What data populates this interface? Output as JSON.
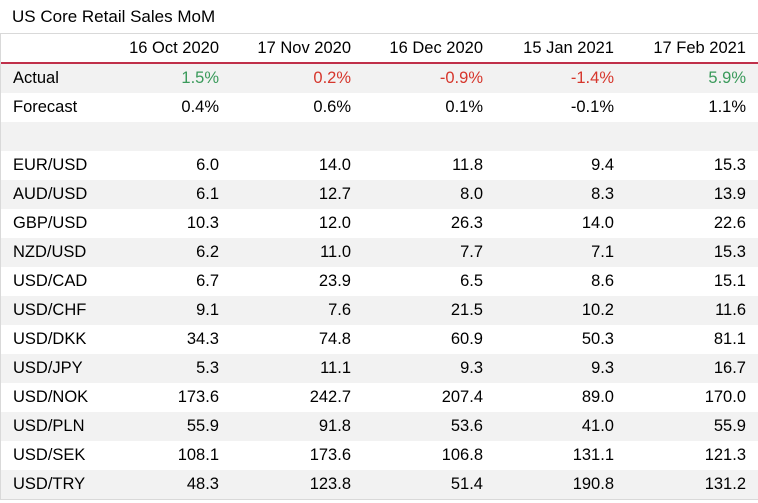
{
  "title": "US Core Retail Sales MoM",
  "columns": [
    "",
    "16 Oct 2020",
    "17 Nov 2020",
    "16 Dec 2020",
    "15 Jan 2021",
    "17 Feb 2021"
  ],
  "actual": {
    "label": "Actual",
    "values": [
      "1.5%",
      "0.2%",
      "-0.9%",
      "-1.4%",
      "5.9%"
    ],
    "colors": [
      "#3a9a5b",
      "#d6362c",
      "#d6362c",
      "#d6362c",
      "#3a9a5b"
    ]
  },
  "forecast": {
    "label": "Forecast",
    "values": [
      "0.4%",
      "0.6%",
      "0.1%",
      "-0.1%",
      "1.1%"
    ]
  },
  "rows": [
    {
      "label": "EUR/USD",
      "values": [
        "6.0",
        "14.0",
        "11.8",
        "9.4",
        "15.3"
      ]
    },
    {
      "label": "AUD/USD",
      "values": [
        "6.1",
        "12.7",
        "8.0",
        "8.3",
        "13.9"
      ]
    },
    {
      "label": "GBP/USD",
      "values": [
        "10.3",
        "12.0",
        "26.3",
        "14.0",
        "22.6"
      ]
    },
    {
      "label": "NZD/USD",
      "values": [
        "6.2",
        "11.0",
        "7.7",
        "7.1",
        "15.3"
      ]
    },
    {
      "label": "USD/CAD",
      "values": [
        "6.7",
        "23.9",
        "6.5",
        "8.6",
        "15.1"
      ]
    },
    {
      "label": "USD/CHF",
      "values": [
        "9.1",
        "7.6",
        "21.5",
        "10.2",
        "11.6"
      ]
    },
    {
      "label": "USD/DKK",
      "values": [
        "34.3",
        "74.8",
        "60.9",
        "50.3",
        "81.1"
      ]
    },
    {
      "label": "USD/JPY",
      "values": [
        "5.3",
        "11.1",
        "9.3",
        "9.3",
        "16.7"
      ]
    },
    {
      "label": "USD/NOK",
      "values": [
        "173.6",
        "242.7",
        "207.4",
        "89.0",
        "170.0"
      ]
    },
    {
      "label": "USD/PLN",
      "values": [
        "55.9",
        "91.8",
        "53.6",
        "41.0",
        "55.9"
      ]
    },
    {
      "label": "USD/SEK",
      "values": [
        "108.1",
        "173.6",
        "106.8",
        "131.1",
        "121.3"
      ]
    },
    {
      "label": "USD/TRY",
      "values": [
        "48.3",
        "123.8",
        "51.4",
        "190.8",
        "131.2"
      ]
    }
  ]
}
